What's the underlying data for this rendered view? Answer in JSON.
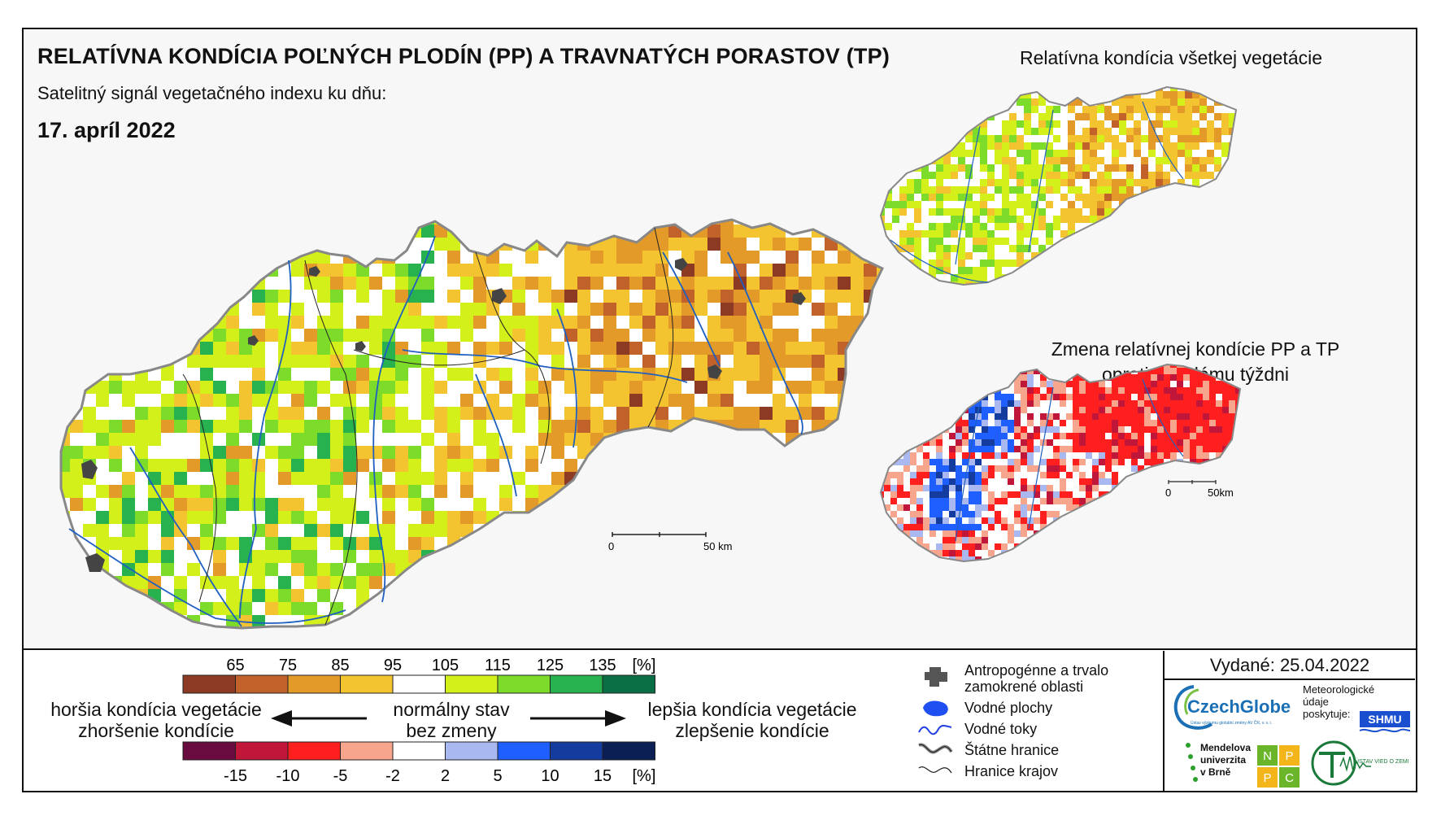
{
  "title": "RELATÍVNA KONDÍCIA POĽNÝCH PLODÍN (PP) A TRAVNATÝCH PORASTOV (TP)",
  "subtitle": "Satelitný signál vegetačného indexu ku dňu:",
  "date": "17. apríl 2022",
  "right_top_title": "Relatívna kondícia všetkej vegetácie",
  "right_bottom_title_line1": "Zmena relatívnej kondície PP a TP",
  "right_bottom_title_line2": "oproti minulému týždni",
  "scale_main": {
    "zero": "0",
    "end": "50 km"
  },
  "scale_small": {
    "zero": "0",
    "end": "50km"
  },
  "legend_condition": {
    "ticks": [
      "65",
      "75",
      "85",
      "95",
      "105",
      "115",
      "125",
      "135",
      "[%]"
    ],
    "colors": [
      "#8c3a23",
      "#c0622a",
      "#e39a28",
      "#f4c430",
      "#ffffff",
      "#d4f01a",
      "#7ddb2a",
      "#27b24f",
      "#0a6e45"
    ]
  },
  "legend_change": {
    "ticks": [
      "-15",
      "-10",
      "-5",
      "-2",
      "2",
      "5",
      "10",
      "15",
      "[%]"
    ],
    "colors": [
      "#6a0b3f",
      "#c0163a",
      "#ff1f1f",
      "#f8a58d",
      "#ffffff",
      "#a9b8f0",
      "#1f5eff",
      "#143c9e",
      "#0b1f55"
    ]
  },
  "arrow_left_line1": "horšia kondícia vegetácie",
  "arrow_left_line2": "zhoršenie kondície",
  "arrow_center_line1": "normálny stav",
  "arrow_center_line2": "bez zmeny",
  "arrow_right_line1": "lepšia kondícia vegetácie",
  "arrow_right_line2": "zlepšenie kondície",
  "map_legend": {
    "anthropogenic": "Antropogénne a trvalo zamokrené oblasti",
    "anthropogenic_l1": "Antropogénne a trvalo",
    "anthropogenic_l2": "zamokrené oblasti",
    "water_areas": "Vodné plochy",
    "rivers": "Vodné toky",
    "state_border": "Štátne hranice",
    "region_border": "Hranice krajov"
  },
  "issued": "Vydané: 25.04.2022",
  "logos": {
    "czechglobe": "CzechGlobe",
    "czechglobe_sub": "Ústav výzkumu globální změny AV ČR, v. v. i.",
    "meteo_l1": "Meteorologické",
    "meteo_l2": "údaje",
    "meteo_l3": "poskytuje:",
    "shmu": "SHMU",
    "mendel_l1": "Mendelova",
    "mendel_l2": "univerzita",
    "mendel_l3": "v Brně",
    "nppc": [
      "N",
      "P",
      "P",
      "C"
    ],
    "uvoz": "ÚSTAV VIED O ZEMI"
  }
}
